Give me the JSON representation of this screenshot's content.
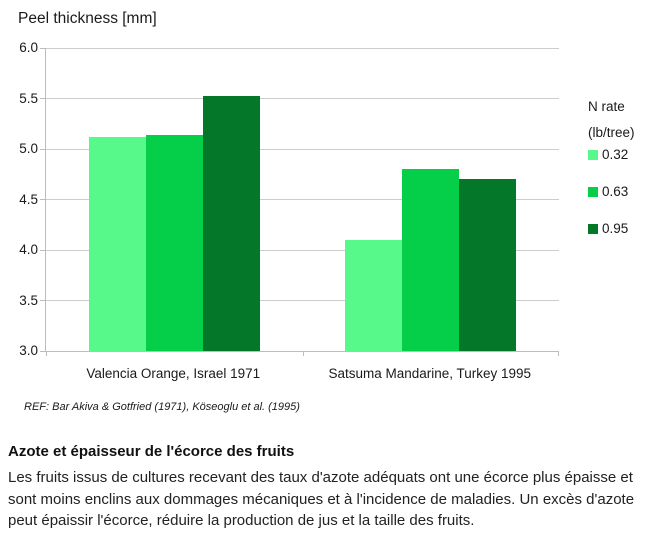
{
  "chart": {
    "title": "Peel thickness [mm]",
    "ref_note": "REF: Bar Akiva & Gotfried (1971), Köseoglu et al. (1995)",
    "legend": {
      "title_line1": "N rate",
      "title_line2": "(lb/tree)"
    }
  },
  "chart_data": {
    "type": "bar",
    "title": "Peel thickness [mm]",
    "categories": [
      "Valencia Orange, Israel 1971",
      "Satsuma Mandarine, Turkey 1995"
    ],
    "series": [
      {
        "name": "0.32",
        "color": "#57F98A",
        "values": [
          5.12,
          4.1
        ]
      },
      {
        "name": "0.63",
        "color": "#05CE48",
        "values": [
          5.14,
          4.8
        ]
      },
      {
        "name": "0.95",
        "color": "#047729",
        "values": [
          5.52,
          4.7
        ]
      }
    ],
    "xlabel": "",
    "ylabel": "Peel thickness [mm]",
    "ylim": [
      3.0,
      6.0
    ],
    "yticks": [
      "6.0",
      "5.5",
      "5.0",
      "4.5",
      "4.0",
      "3.5",
      "3.0"
    ],
    "grid": true,
    "legend_title": "N rate (lb/tree)",
    "legend_position": "right",
    "axis_color": "#bdbdbd",
    "gridline_color": "#cccccc"
  },
  "footer": {
    "heading": "Azote et épaisseur de l'écorce des fruits",
    "body": "Les fruits issus de cultures recevant des taux d'azote adéquats ont une écorce plus épaisse et sont moins enclins aux dommages mécaniques et à l'incidence de maladies. Un excès d'azote peut épaissir l'écorce, réduire la production de jus et la taille des fruits."
  }
}
